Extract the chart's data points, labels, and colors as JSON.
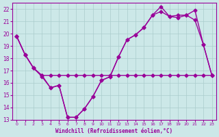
{
  "xlabel": "Windchill (Refroidissement éolien,°C)",
  "bg_color": "#cce8e8",
  "grid_color": "#aacccc",
  "line_color": "#990099",
  "xlim": [
    -0.5,
    23.5
  ],
  "ylim": [
    13,
    22.5
  ],
  "yticks": [
    13,
    14,
    15,
    16,
    17,
    18,
    19,
    20,
    21,
    22
  ],
  "xticks": [
    0,
    1,
    2,
    3,
    4,
    5,
    6,
    7,
    8,
    9,
    10,
    11,
    12,
    13,
    14,
    15,
    16,
    17,
    18,
    19,
    20,
    21,
    22,
    23
  ],
  "line1_x": [
    0,
    1,
    2,
    3,
    4,
    5,
    6,
    7,
    8,
    9,
    10,
    11,
    12,
    13,
    14,
    15,
    16,
    17,
    18,
    19,
    20,
    21,
    22,
    23
  ],
  "line1_y": [
    19.8,
    18.3,
    17.2,
    16.5,
    15.6,
    15.8,
    13.2,
    13.2,
    13.9,
    14.9,
    16.2,
    16.5,
    18.1,
    19.5,
    19.9,
    20.5,
    21.5,
    21.8,
    21.4,
    21.5,
    21.5,
    21.1,
    19.1,
    16.6
  ],
  "line2_x": [
    0,
    1,
    2,
    3,
    4,
    5,
    6,
    7,
    8,
    9,
    10,
    11,
    12,
    13,
    14,
    15,
    16,
    17,
    18,
    19,
    20,
    21,
    22,
    23
  ],
  "line2_y": [
    19.8,
    18.3,
    17.2,
    16.6,
    15.6,
    15.8,
    13.2,
    13.2,
    13.9,
    14.9,
    16.2,
    16.5,
    18.1,
    19.5,
    19.9,
    20.5,
    21.5,
    22.2,
    21.4,
    21.3,
    21.5,
    21.9,
    19.1,
    16.6
  ],
  "line3_x": [
    0,
    1,
    2,
    3,
    4,
    5,
    6,
    7,
    8,
    9,
    10,
    11,
    12,
    13,
    14,
    15,
    16,
    17,
    18,
    19,
    20,
    21,
    22,
    23
  ],
  "line3_y": [
    19.8,
    18.3,
    17.2,
    16.6,
    16.6,
    16.6,
    16.6,
    16.6,
    16.6,
    16.6,
    16.6,
    16.6,
    16.6,
    16.6,
    16.6,
    16.6,
    16.6,
    16.6,
    16.6,
    16.6,
    16.6,
    16.6,
    16.6,
    16.6
  ]
}
